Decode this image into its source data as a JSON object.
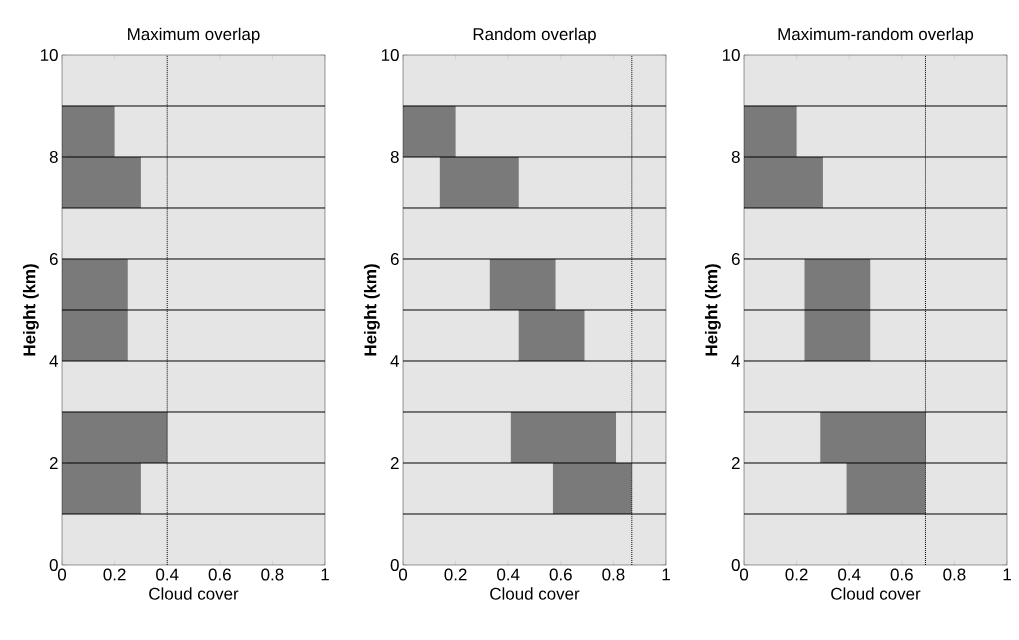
{
  "chart_data": [
    {
      "type": "bar",
      "orientation": "horizontal",
      "title": "Maximum overlap",
      "xlabel": "Cloud cover",
      "ylabel": "Height (km)",
      "x": [
        8.5,
        7.5,
        5.5,
        4.5,
        2.5,
        1.5
      ],
      "base": [
        0,
        0,
        0,
        0,
        0,
        0
      ],
      "values": [
        0.2,
        0.3,
        0.25,
        0.25,
        0.4,
        0.3
      ],
      "color": "#7a7a7a",
      "xlim": [
        0,
        1
      ],
      "ylim": [
        0,
        10
      ],
      "xticks": [
        0,
        0.2,
        0.4,
        0.6,
        0.8,
        1
      ],
      "yticks": [
        0,
        2,
        4,
        6,
        8,
        10
      ],
      "ref_lines": [
        {
          "axis": "x",
          "value": 0.4,
          "color": "#000000",
          "line_style": "dotted"
        },
        {
          "axis": "y",
          "value": 1,
          "color": "#000000",
          "line_style": "solid"
        },
        {
          "axis": "y",
          "value": 2,
          "color": "#000000",
          "line_style": "solid"
        },
        {
          "axis": "y",
          "value": 3,
          "color": "#000000",
          "line_style": "solid"
        },
        {
          "axis": "y",
          "value": 4,
          "color": "#000000",
          "line_style": "solid"
        },
        {
          "axis": "y",
          "value": 5,
          "color": "#000000",
          "line_style": "solid"
        },
        {
          "axis": "y",
          "value": 6,
          "color": "#000000",
          "line_style": "solid"
        },
        {
          "axis": "y",
          "value": 7,
          "color": "#000000",
          "line_style": "solid"
        },
        {
          "axis": "y",
          "value": 8,
          "color": "#000000",
          "line_style": "solid"
        },
        {
          "axis": "y",
          "value": 9,
          "color": "#000000",
          "line_style": "solid"
        }
      ]
    },
    {
      "type": "bar",
      "orientation": "horizontal",
      "title": "Random overlap",
      "xlabel": "Cloud cover",
      "ylabel": "Height (km)",
      "x": [
        8.5,
        7.5,
        5.5,
        4.5,
        2.5,
        1.5
      ],
      "base": [
        0,
        0.14,
        0.33,
        0.44,
        0.41,
        0.57
      ],
      "values": [
        0.2,
        0.3,
        0.25,
        0.25,
        0.4,
        0.3
      ],
      "color": "#7a7a7a",
      "xlim": [
        0,
        1
      ],
      "ylim": [
        0,
        10
      ],
      "xticks": [
        0,
        0.2,
        0.4,
        0.6,
        0.8,
        1
      ],
      "yticks": [
        0,
        2,
        4,
        6,
        8,
        10
      ],
      "ref_lines": [
        {
          "axis": "x",
          "value": 0.87,
          "color": "#000000",
          "line_style": "dotted"
        },
        {
          "axis": "y",
          "value": 1,
          "color": "#000000",
          "line_style": "solid"
        },
        {
          "axis": "y",
          "value": 2,
          "color": "#000000",
          "line_style": "solid"
        },
        {
          "axis": "y",
          "value": 3,
          "color": "#000000",
          "line_style": "solid"
        },
        {
          "axis": "y",
          "value": 4,
          "color": "#000000",
          "line_style": "solid"
        },
        {
          "axis": "y",
          "value": 5,
          "color": "#000000",
          "line_style": "solid"
        },
        {
          "axis": "y",
          "value": 6,
          "color": "#000000",
          "line_style": "solid"
        },
        {
          "axis": "y",
          "value": 7,
          "color": "#000000",
          "line_style": "solid"
        },
        {
          "axis": "y",
          "value": 8,
          "color": "#000000",
          "line_style": "solid"
        },
        {
          "axis": "y",
          "value": 9,
          "color": "#000000",
          "line_style": "solid"
        }
      ]
    },
    {
      "type": "bar",
      "orientation": "horizontal",
      "title": "Maximum-random overlap",
      "xlabel": "Cloud cover",
      "ylabel": "Height (km)",
      "x": [
        8.5,
        7.5,
        5.5,
        4.5,
        2.5,
        1.5
      ],
      "base": [
        0,
        0,
        0.23,
        0.23,
        0.29,
        0.39
      ],
      "values": [
        0.2,
        0.3,
        0.25,
        0.25,
        0.4,
        0.3
      ],
      "color": "#7a7a7a",
      "xlim": [
        0,
        1
      ],
      "ylim": [
        0,
        10
      ],
      "xticks": [
        0,
        0.2,
        0.4,
        0.6,
        0.8,
        1
      ],
      "yticks": [
        0,
        2,
        4,
        6,
        8,
        10
      ],
      "ref_lines": [
        {
          "axis": "x",
          "value": 0.69,
          "color": "#000000",
          "line_style": "dotted"
        },
        {
          "axis": "y",
          "value": 1,
          "color": "#000000",
          "line_style": "solid"
        },
        {
          "axis": "y",
          "value": 2,
          "color": "#000000",
          "line_style": "solid"
        },
        {
          "axis": "y",
          "value": 3,
          "color": "#000000",
          "line_style": "solid"
        },
        {
          "axis": "y",
          "value": 4,
          "color": "#000000",
          "line_style": "solid"
        },
        {
          "axis": "y",
          "value": 5,
          "color": "#000000",
          "line_style": "solid"
        },
        {
          "axis": "y",
          "value": 6,
          "color": "#000000",
          "line_style": "solid"
        },
        {
          "axis": "y",
          "value": 7,
          "color": "#000000",
          "line_style": "solid"
        },
        {
          "axis": "y",
          "value": 8,
          "color": "#000000",
          "line_style": "solid"
        },
        {
          "axis": "y",
          "value": 9,
          "color": "#000000",
          "line_style": "solid"
        }
      ]
    }
  ]
}
